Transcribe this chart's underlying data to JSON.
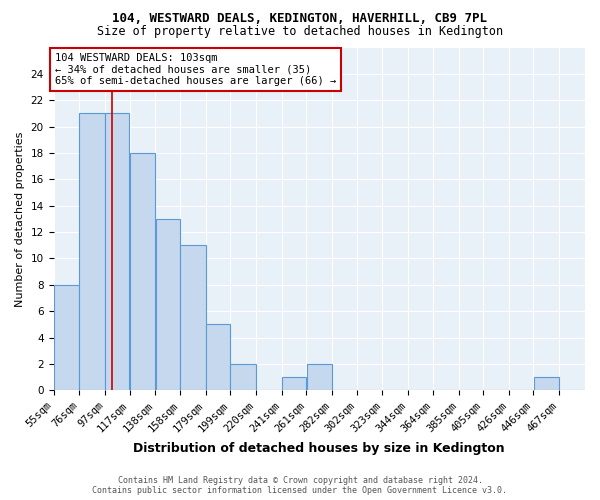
{
  "title1": "104, WESTWARD DEALS, KEDINGTON, HAVERHILL, CB9 7PL",
  "title2": "Size of property relative to detached houses in Kedington",
  "xlabel": "Distribution of detached houses by size in Kedington",
  "ylabel": "Number of detached properties",
  "bin_labels": [
    "55sqm",
    "76sqm",
    "97sqm",
    "117sqm",
    "138sqm",
    "158sqm",
    "179sqm",
    "199sqm",
    "220sqm",
    "241sqm",
    "261sqm",
    "282sqm",
    "302sqm",
    "323sqm",
    "344sqm",
    "364sqm",
    "385sqm",
    "405sqm",
    "426sqm",
    "446sqm",
    "467sqm"
  ],
  "bin_edges": [
    55,
    76,
    97,
    117,
    138,
    158,
    179,
    199,
    220,
    241,
    261,
    282,
    302,
    323,
    344,
    364,
    385,
    405,
    426,
    446,
    467
  ],
  "bar_heights": [
    8,
    21,
    21,
    18,
    13,
    11,
    5,
    2,
    0,
    1,
    2,
    0,
    0,
    0,
    0,
    0,
    0,
    0,
    0,
    1,
    0
  ],
  "bar_color": "#c5d8ee",
  "bar_edge_color": "#5b9bd5",
  "subject_size": 103,
  "red_line_color": "#cc0000",
  "annotation_text": "104 WESTWARD DEALS: 103sqm\n← 34% of detached houses are smaller (35)\n65% of semi-detached houses are larger (66) →",
  "annotation_box_edge": "#cc0000",
  "footer1": "Contains HM Land Registry data © Crown copyright and database right 2024.",
  "footer2": "Contains public sector information licensed under the Open Government Licence v3.0.",
  "ylim": [
    0,
    26
  ],
  "yticks": [
    0,
    2,
    4,
    6,
    8,
    10,
    12,
    14,
    16,
    18,
    20,
    22,
    24
  ],
  "background_color": "#e8f0f8",
  "title1_fontsize": 9,
  "title2_fontsize": 8.5,
  "xlabel_fontsize": 9,
  "ylabel_fontsize": 8,
  "tick_fontsize": 7.5,
  "annotation_fontsize": 7.5,
  "footer_fontsize": 6
}
